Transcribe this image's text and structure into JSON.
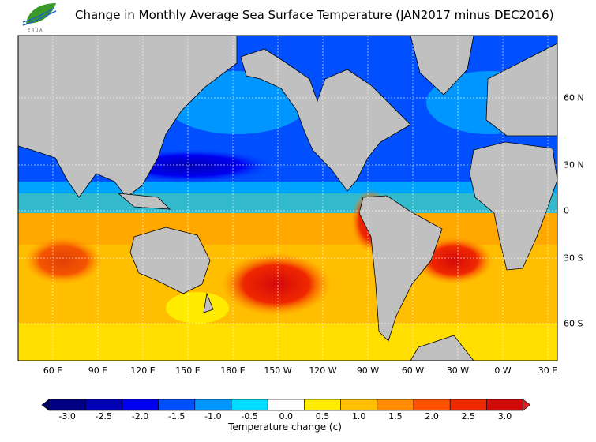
{
  "title": "Change in Monthly Average Sea Surface Temperature (JAN2017 minus DEC2016)",
  "logo": {
    "icon": "leaf-logo",
    "text": "ERUA RAIS"
  },
  "map": {
    "lon_labels": [
      "60 E",
      "90 E",
      "120 E",
      "150 E",
      "180 E",
      "150 W",
      "120 W",
      "90 W",
      "60 W",
      "30 W",
      "0 W",
      "30 E"
    ],
    "lat_labels": [
      "60 N",
      "30 N",
      "0",
      "30 S",
      "60 S"
    ],
    "land_color": "#c0c0c0",
    "missing_color": "#e6e6e6"
  },
  "colorbar": {
    "title": "Temperature change  (c)",
    "labels": [
      "-3.0",
      "-2.5",
      "-2.0",
      "-1.5",
      "-1.0",
      "-0.5",
      "0.0",
      "0.5",
      "1.0",
      "1.5",
      "2.0",
      "2.5",
      "3.0"
    ],
    "colors": [
      "#000080",
      "#0000b4",
      "#0000f0",
      "#0050ff",
      "#0096ff",
      "#00dcff",
      "#ffffff",
      "#ffeb00",
      "#ffbe00",
      "#ff8c00",
      "#ff5000",
      "#f02800",
      "#d20a0a"
    ],
    "under_color": "#000060",
    "over_color": "#e02020"
  }
}
